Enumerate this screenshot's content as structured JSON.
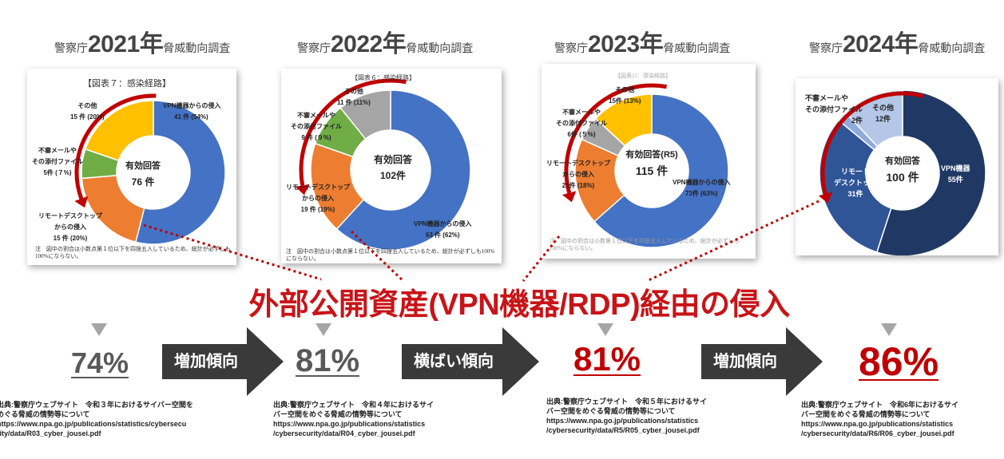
{
  "headers": [
    {
      "pre": "警察庁",
      "year": "2021年",
      "suf": "脅威動向調査"
    },
    {
      "pre": "警察庁",
      "year": "2022年",
      "suf": "脅威動向調査"
    },
    {
      "pre": "警察庁",
      "year": "2023年",
      "suf": "脅威動向調査"
    },
    {
      "pre": "警察庁",
      "year": "2024年",
      "suf": "脅威動向調査"
    }
  ],
  "headline": "外部公開資産(VPN機器/RDP)経由の侵入",
  "percentages": [
    "74%",
    "81%",
    "81%",
    "86%"
  ],
  "trends": [
    "増加傾向",
    "横ばい傾向",
    "増加傾向"
  ],
  "sources": [
    [
      "出典:警察庁ウェブサイト　令和３年におけるサイバー空間を",
      "めぐる脅威の情勢等について",
      "https://www.npa.go.jp/publications/statistics/cybersecu",
      "rity/data/R03_cyber_jousei.pdf"
    ],
    [
      "出典:警察庁ウェブサイト　令和４年におけるサイ",
      "バー空間をめぐる脅威の情勢等について",
      "https://www.npa.go.jp/publications/statistics",
      "/cybersecurity/data/R04_cyber_jousei.pdf"
    ],
    [
      "出典:警察庁ウェブサイト　令和５年におけるサイ",
      "バー空間をめぐる脅威の情勢等について",
      "https://www.npa.go.jp/publications/statistics",
      "/cybersecurity/data/R5/R05_cyber_jousei.pdf"
    ],
    [
      "出典:警察庁ウェブサイト　令和6年におけるサイ",
      "バー空間をめぐる脅威の情勢等について",
      "https://www.npa.go.jp/publications/statistics",
      "/cybersecurity/data/R6/R06_cyber_jousei.pdf"
    ]
  ],
  "cards": [
    {
      "title": "【図表７：感染経路】",
      "center": [
        "有効回答",
        "76 件"
      ],
      "labels": [
        [
          "VPN機器からの侵入",
          "41 件 (54%)"
        ],
        [
          "リモートデスクトップ",
          "からの侵入",
          "15 件 (20%)"
        ],
        [
          "不審メールや",
          "その添付ファイル",
          "5件 (７%)"
        ],
        [
          "その他",
          "15 件 (20%)"
        ]
      ],
      "note": "注　図中の割合は小数点第１位以下を四捨五入しているため、総計が必ずしも100%にならない。"
    },
    {
      "title": "【図表６：感染経路】",
      "center": [
        "有効回答",
        "102件"
      ],
      "labels": [
        [
          "VPN機器からの侵入",
          "63 件 (62%)"
        ],
        [
          "リモートデスクトップ",
          "からの侵入",
          "19 件 (19%)"
        ],
        [
          "不審メールや",
          "その添付ファイル",
          "9 件 (９%)"
        ],
        [
          "その他",
          "11 件 (11%)"
        ]
      ],
      "note": "注　図中の割合は小数点第１位以下を四捨五入しているため、総計が必ずしも100%にならない。"
    },
    {
      "title": "【図表22：感染経路】",
      "center": [
        "有効回答(R5)",
        "115 件"
      ],
      "labels": [
        [
          "VPN機器からの侵入",
          "73件 (63%)"
        ],
        [
          "リモートデスクトップ",
          "からの侵入",
          "21件 (18%)"
        ],
        [
          "不審メールや",
          "その添付ファイル",
          "6件 (５%)"
        ],
        [
          "その他",
          "15件 (13%)"
        ]
      ],
      "note": "注　図中の割合は小数第１位以下を四捨五入しているため、総計が必ずしも100%にならない。"
    },
    {
      "title": "",
      "center": [
        "有効回答",
        "100 件"
      ],
      "labels": [
        [
          "VPN機器",
          "55件"
        ],
        [
          "リモート",
          "デスクトップ",
          "31件"
        ],
        [
          "不審メールや",
          "その添付ファイル",
          "2件"
        ],
        [
          "その他",
          "12件"
        ]
      ],
      "note": ""
    }
  ],
  "chart_data": [
    {
      "type": "pie",
      "title": "【図表７：感染経路】",
      "categories": [
        "VPN機器からの侵入",
        "リモートデスクトップからの侵入",
        "不審メールやその添付ファイル",
        "その他"
      ],
      "values": [
        41,
        15,
        5,
        15
      ],
      "colors": [
        "#4472c4",
        "#ed7d31",
        "#70ad47",
        "#ffc000"
      ]
    },
    {
      "type": "pie",
      "title": "【図表６：感染経路】",
      "categories": [
        "VPN機器からの侵入",
        "リモートデスクトップからの侵入",
        "不審メールやその添付ファイル",
        "その他"
      ],
      "values": [
        63,
        19,
        9,
        11
      ],
      "colors": [
        "#4472c4",
        "#ed7d31",
        "#70ad47",
        "#a5a5a5"
      ]
    },
    {
      "type": "pie",
      "title": "【図表22：感染経路】",
      "categories": [
        "VPN機器からの侵入",
        "リモートデスクトップからの侵入",
        "不審メールやその添付ファイル",
        "その他"
      ],
      "values": [
        73,
        21,
        6,
        15
      ],
      "colors": [
        "#4472c4",
        "#ed7d31",
        "#a5a5a5",
        "#ffc000"
      ]
    },
    {
      "type": "pie",
      "title": "",
      "categories": [
        "VPN機器",
        "リモートデスクトップ",
        "不審メールやその添付ファイル",
        "その他"
      ],
      "values": [
        55,
        31,
        2,
        12
      ],
      "colors": [
        "#203864",
        "#2f5597",
        "#8faadc",
        "#b4c7e7"
      ]
    }
  ],
  "colors": {
    "headline": "#c81418",
    "ring": "#c00000",
    "arrow": "#3a3a3a",
    "triangle": "#a6a6a6",
    "pct_gray": "#595959",
    "pct_red": "#c00000"
  }
}
